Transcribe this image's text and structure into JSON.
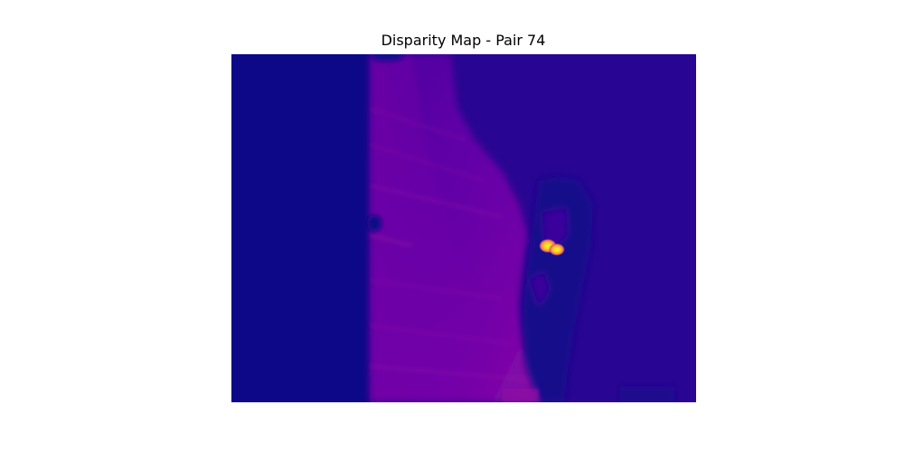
{
  "figure": {
    "title": "Disparity Map - Pair 74",
    "colormap": "plasma",
    "colors": {
      "background": "#ffffff",
      "far": "#0d0887",
      "mid_far": "#270593",
      "mid": "#6a00a8",
      "near": "#8c0ba4",
      "hot": "#fdca26"
    }
  }
}
